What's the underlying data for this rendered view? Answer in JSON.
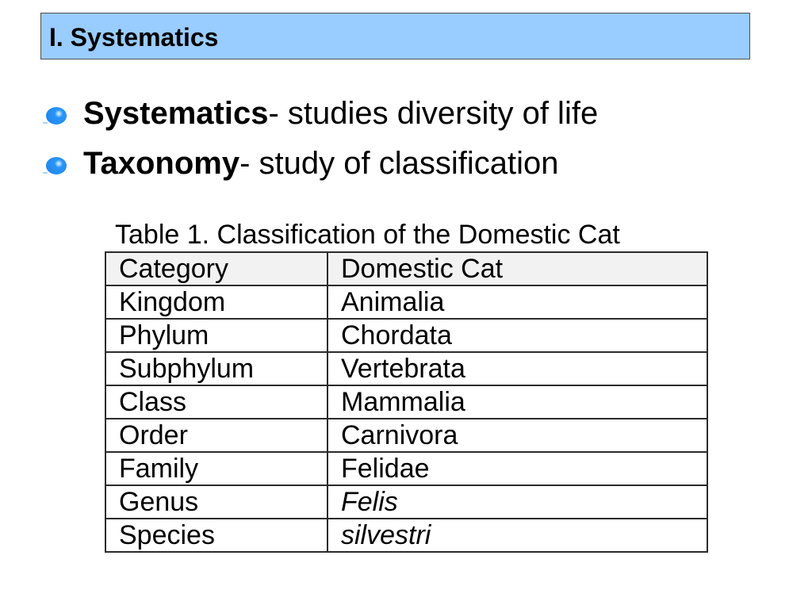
{
  "slide": {
    "title": "I. Systematics",
    "bullets": [
      {
        "term": "Systematics",
        "definition": "- studies diversity of life",
        "icon": "blue-bubble-bullet-icon"
      },
      {
        "term": "Taxonomy",
        "definition": "- study of classification",
        "icon": "blue-bubble-bullet-icon"
      }
    ],
    "table": {
      "caption": "Table 1. Classification of the Domestic Cat",
      "headers": [
        "Category",
        "Domestic Cat"
      ],
      "rows": [
        {
          "category": "Kingdom",
          "value": "Animalia"
        },
        {
          "category": "Phylum",
          "value": "Chordata"
        },
        {
          "category": "Subphylum",
          "value": "Vertebrata"
        },
        {
          "category": "Class",
          "value": "Mammalia"
        },
        {
          "category": "Order",
          "value": "Carnivora"
        },
        {
          "category": "Family",
          "value": "Felidae"
        },
        {
          "category": "Genus",
          "value": "Felis"
        },
        {
          "category": "Species",
          "value": "silvestri"
        }
      ]
    }
  },
  "colors": {
    "title_background": "#99ccff",
    "bullet_blue": "#1b82ee",
    "header_row_background": "#f2f2f2"
  }
}
